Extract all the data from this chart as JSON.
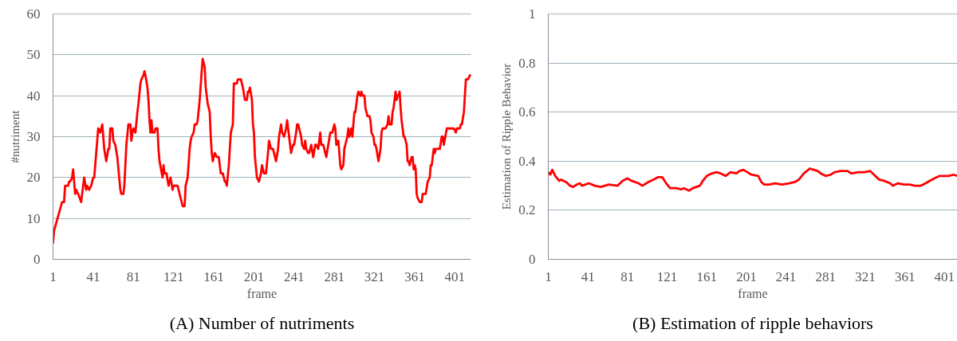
{
  "chart_data": [
    {
      "type": "line",
      "title": "(A) Number of nutriments",
      "xlabel": "frame",
      "ylabel": "#nutriment",
      "xlim": [
        1,
        417
      ],
      "xticks": [
        1,
        41,
        81,
        121,
        161,
        201,
        241,
        281,
        321,
        361,
        401
      ],
      "ylim": [
        0,
        60
      ],
      "yticks": [
        0,
        10,
        20,
        30,
        40,
        50,
        60
      ],
      "grid": "y",
      "line_style": "solid",
      "series": [
        {
          "color": "#ff0000",
          "x": [
            1,
            2,
            6,
            10,
            12,
            13,
            16,
            17,
            18,
            20,
            21,
            23,
            24,
            26,
            29,
            32,
            34,
            35,
            37,
            39,
            41,
            42,
            46,
            48,
            50,
            52,
            54,
            56,
            57,
            58,
            60,
            61,
            63,
            65,
            68,
            69,
            71,
            72,
            74,
            76,
            78,
            79,
            80,
            81,
            83,
            85,
            86,
            88,
            89,
            91,
            92,
            93,
            95,
            96,
            97,
            98,
            99,
            100,
            102,
            103,
            105,
            106,
            107,
            110,
            111,
            112,
            114,
            116,
            118,
            120,
            121,
            123,
            125,
            126,
            129,
            130,
            132,
            133,
            135,
            137,
            138,
            139,
            141,
            142,
            144,
            145,
            147,
            149,
            150,
            152,
            153,
            155,
            157,
            158,
            159,
            160,
            162,
            164,
            165,
            166,
            167,
            168,
            170,
            172,
            173,
            174,
            176,
            178,
            180,
            181,
            183,
            184,
            185,
            188,
            190,
            192,
            194,
            195,
            196,
            197,
            199,
            200,
            201,
            202,
            204,
            206,
            208,
            209,
            211,
            213,
            215,
            216,
            218,
            220,
            223,
            225,
            226,
            228,
            229,
            231,
            233,
            234,
            236,
            238,
            240,
            241,
            243,
            244,
            245,
            248,
            249,
            251,
            252,
            253,
            255,
            256,
            258,
            260,
            262,
            263,
            265,
            267,
            268,
            270,
            271,
            273,
            275,
            277,
            279,
            281,
            282,
            283,
            285,
            287,
            288,
            290,
            291,
            292,
            294,
            295,
            296,
            298,
            299,
            301,
            302,
            304,
            305,
            307,
            308,
            309,
            311,
            312,
            314,
            316,
            317,
            318,
            320,
            321,
            322,
            323,
            325,
            327,
            328,
            329,
            331,
            332,
            334,
            335,
            336,
            338,
            339,
            340,
            342,
            343,
            344,
            345,
            346,
            347,
            348,
            350,
            351,
            353,
            354,
            355,
            356,
            358,
            359,
            360,
            361,
            362,
            363,
            364,
            366,
            368,
            369,
            372,
            374,
            376,
            377,
            378,
            380,
            381,
            382,
            386,
            388,
            389,
            390,
            393,
            394,
            400,
            402,
            403,
            406,
            407,
            408,
            410,
            411,
            412,
            414,
            416,
            417
          ],
          "values": [
            4,
            7,
            10.5,
            14,
            14,
            18,
            18,
            19,
            19,
            20,
            22,
            16,
            17,
            16,
            14,
            20,
            17,
            18,
            17,
            18,
            20,
            20,
            32,
            31,
            33,
            27,
            24,
            27,
            27,
            32,
            32,
            29,
            28,
            25,
            17,
            16,
            16,
            18,
            28,
            33,
            33,
            29,
            31,
            32,
            31,
            36,
            38,
            43,
            44,
            45,
            46,
            45,
            42,
            39,
            34,
            31,
            34,
            31,
            31,
            32,
            32,
            27,
            24,
            20,
            23,
            21,
            21,
            18,
            20,
            17,
            18,
            18,
            18,
            17,
            14,
            13,
            13,
            18,
            20,
            27,
            29,
            30,
            31,
            33,
            33,
            34,
            39,
            46,
            49,
            47,
            42,
            38,
            36,
            30,
            26,
            24,
            26,
            25,
            25,
            25,
            23,
            21,
            21,
            19,
            19,
            18,
            23,
            31,
            33,
            43,
            43,
            43,
            44,
            44,
            42,
            39,
            39,
            41,
            41,
            42,
            39,
            33,
            31,
            25,
            20,
            19,
            21,
            23,
            21,
            21,
            26,
            29,
            27,
            27,
            24,
            27,
            30,
            33,
            31,
            30,
            32,
            34,
            30,
            26,
            28,
            28,
            31,
            33,
            33,
            30,
            28,
            27,
            29,
            27,
            26,
            26,
            28,
            25,
            28,
            28,
            27,
            31,
            28,
            28,
            27,
            25,
            28,
            31,
            31,
            33,
            32,
            28,
            29,
            23,
            22,
            23,
            27,
            28,
            30,
            32,
            30,
            32,
            30,
            36,
            36,
            40,
            41,
            40,
            41,
            40,
            40,
            37,
            35,
            35,
            34,
            31,
            30,
            28,
            28,
            27,
            24,
            27,
            31,
            32,
            32,
            32,
            33,
            35,
            33,
            33,
            36,
            37,
            41,
            39,
            40,
            40,
            41,
            37,
            34,
            30,
            30,
            28,
            24,
            24,
            23,
            25,
            25,
            22,
            23,
            22,
            16,
            15,
            14,
            14,
            16,
            16,
            19,
            20,
            23,
            23,
            27,
            26,
            27,
            27,
            30,
            30,
            28,
            32,
            32,
            32,
            31,
            32,
            32,
            33,
            33,
            36,
            40,
            44,
            44,
            45,
            45
          ]
        }
      ]
    },
    {
      "type": "line",
      "title": "(B) Estimation of ripple behaviors",
      "xlabel": "frame",
      "ylabel": "Estimation of Ripple Behavior",
      "xlim": [
        1,
        414
      ],
      "xticks": [
        1,
        41,
        81,
        121,
        161,
        201,
        241,
        281,
        321,
        361,
        401
      ],
      "ylim": [
        0,
        1
      ],
      "yticks": [
        0,
        0.2,
        0.4,
        0.6,
        0.8,
        1
      ],
      "grid": "y",
      "line_style": "solid",
      "series": [
        {
          "color": "#ff0000",
          "x": [
            1,
            3,
            5,
            8,
            12,
            14,
            19,
            23,
            26,
            30,
            33,
            35,
            42,
            48,
            54,
            62,
            71,
            76,
            81,
            85,
            92,
            96,
            102,
            107,
            112,
            116,
            120,
            124,
            130,
            135,
            138,
            143,
            147,
            154,
            157,
            161,
            166,
            171,
            175,
            180,
            185,
            191,
            194,
            198,
            202,
            206,
            213,
            216,
            219,
            224,
            230,
            237,
            244,
            250,
            254,
            259,
            262,
            265,
            269,
            273,
            276,
            281,
            286,
            290,
            296,
            303,
            307,
            314,
            320,
            326,
            331,
            335,
            340,
            346,
            349,
            354,
            360,
            366,
            371,
            377,
            382,
            386,
            391,
            396,
            400,
            405,
            410,
            414
          ],
          "values": [
            0.355,
            0.345,
            0.365,
            0.34,
            0.32,
            0.325,
            0.315,
            0.3,
            0.295,
            0.305,
            0.31,
            0.3,
            0.31,
            0.3,
            0.295,
            0.305,
            0.3,
            0.32,
            0.33,
            0.32,
            0.31,
            0.3,
            0.315,
            0.325,
            0.335,
            0.335,
            0.31,
            0.29,
            0.29,
            0.285,
            0.29,
            0.28,
            0.29,
            0.3,
            0.32,
            0.34,
            0.35,
            0.355,
            0.35,
            0.34,
            0.355,
            0.35,
            0.36,
            0.365,
            0.355,
            0.345,
            0.34,
            0.315,
            0.305,
            0.305,
            0.31,
            0.305,
            0.31,
            0.315,
            0.325,
            0.35,
            0.36,
            0.37,
            0.365,
            0.36,
            0.35,
            0.34,
            0.345,
            0.355,
            0.36,
            0.36,
            0.35,
            0.355,
            0.355,
            0.36,
            0.34,
            0.325,
            0.32,
            0.31,
            0.3,
            0.31,
            0.305,
            0.305,
            0.3,
            0.3,
            0.31,
            0.32,
            0.33,
            0.34,
            0.34,
            0.34,
            0.345,
            0.34
          ]
        }
      ]
    }
  ]
}
